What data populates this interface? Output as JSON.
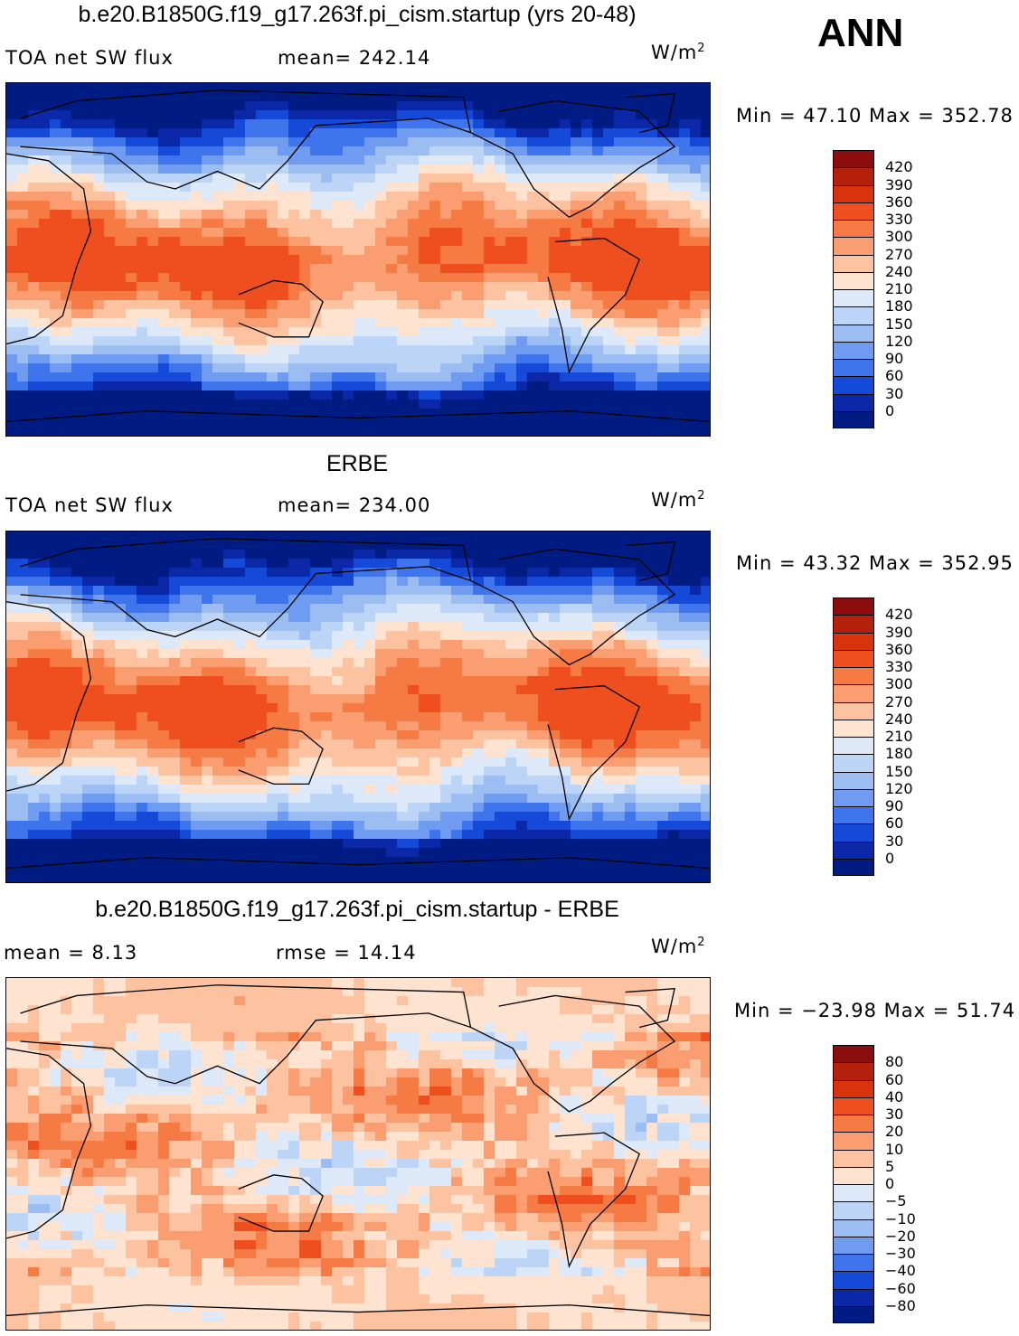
{
  "season": "ANN",
  "panels": [
    {
      "title": "b.e20.B1850G.f19_g17.263f.pi_cism.startup (yrs 20-48)",
      "left_text": "TOA net SW flux",
      "mid_text": "mean= 242.14",
      "unit_base": "W/m",
      "unit_exp": "2",
      "minmax": "Min =   47.10 Max = 352.78",
      "palette": "abs",
      "levels": [
        "420",
        "390",
        "360",
        "330",
        "300",
        "270",
        "240",
        "210",
        "180",
        "150",
        "120",
        "90",
        "60",
        "30",
        "0"
      ]
    },
    {
      "title": "ERBE",
      "left_text": "TOA net SW flux",
      "mid_text": "mean= 234.00",
      "unit_base": "W/m",
      "unit_exp": "2",
      "minmax": "Min =   43.32 Max = 352.95",
      "palette": "abs",
      "levels": [
        "420",
        "390",
        "360",
        "330",
        "300",
        "270",
        "240",
        "210",
        "180",
        "150",
        "120",
        "90",
        "60",
        "30",
        "0"
      ]
    },
    {
      "title": "b.e20.B1850G.f19_g17.263f.pi_cism.startup - ERBE",
      "left_text": "mean =    8.13",
      "mid_text": "rmse =   14.14",
      "unit_base": "W/m",
      "unit_exp": "2",
      "minmax": "Min = −23.98 Max =   51.74",
      "palette": "diff",
      "levels": [
        "80",
        "60",
        "40",
        "30",
        "20",
        "10",
        "5",
        "0",
        "−5",
        "−10",
        "−20",
        "−30",
        "−40",
        "−60",
        "−80"
      ]
    }
  ],
  "colors": {
    "abs": [
      "#8b0d0d",
      "#b5200d",
      "#d8330d",
      "#ef4f1e",
      "#f67a44",
      "#fa9e72",
      "#fdc3a1",
      "#fde3d0",
      "#dde8f8",
      "#bcd4f6",
      "#9cbdf2",
      "#6f9bf0",
      "#3f75ec",
      "#1549d8",
      "#0a28a7",
      "#001c82"
    ],
    "diff": [
      "#8b0d0d",
      "#b5200d",
      "#d8330d",
      "#ef4f1e",
      "#f67a44",
      "#fa9e72",
      "#fdc3a1",
      "#fde3d0",
      "#dde8f8",
      "#bcd4f6",
      "#9cbdf2",
      "#6f9bf0",
      "#3f75ec",
      "#1549d8",
      "#0a28a7",
      "#001c82"
    ]
  }
}
